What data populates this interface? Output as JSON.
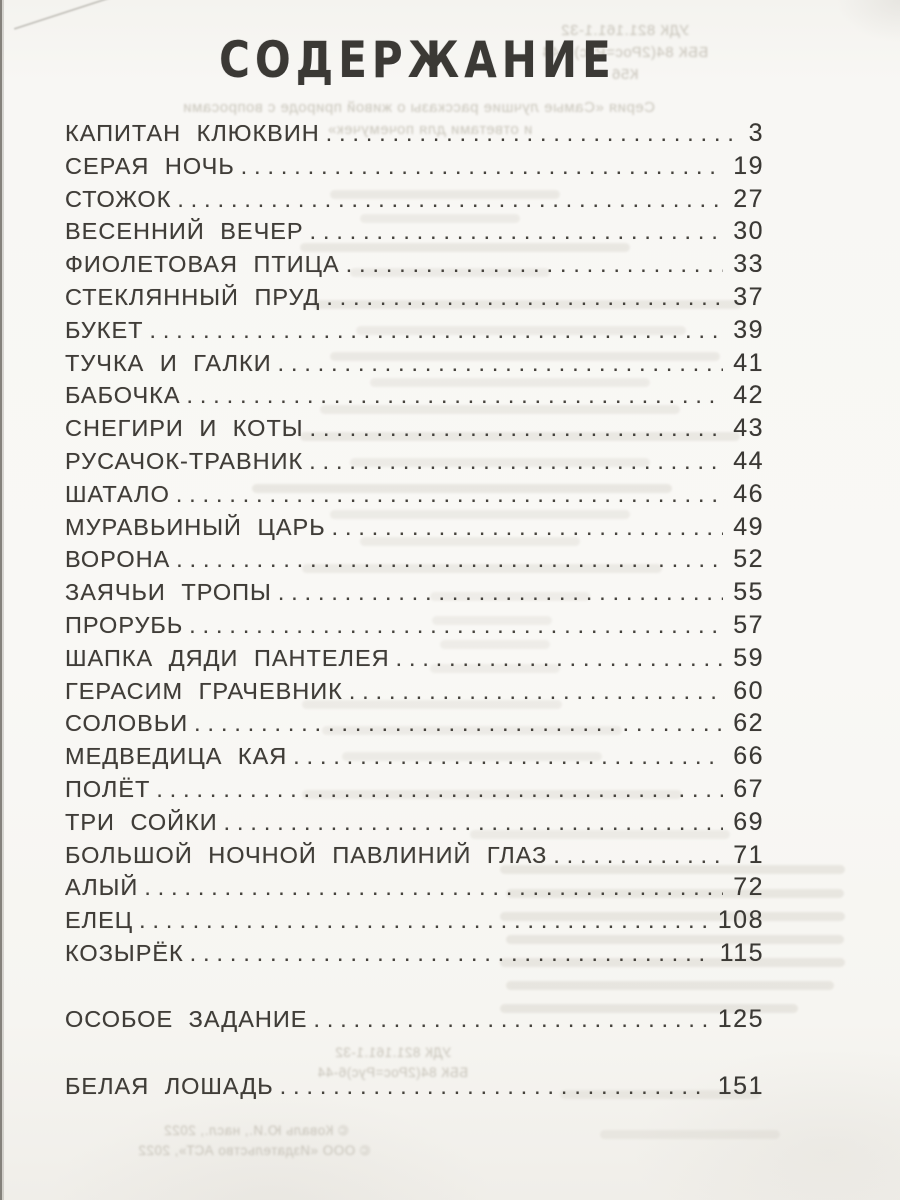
{
  "page_title": "СОДЕРЖАНИЕ",
  "toc": {
    "groups": [
      {
        "entries": [
          {
            "title": "КАПИТАН КЛЮКВИН",
            "page": "3"
          },
          {
            "title": "СЕРАЯ НОЧЬ",
            "page": "19"
          },
          {
            "title": "СТОЖОК",
            "page": "27"
          },
          {
            "title": "ВЕСЕННИЙ ВЕЧЕР",
            "page": "30"
          },
          {
            "title": "ФИОЛЕТОВАЯ ПТИЦА",
            "page": "33"
          },
          {
            "title": "СТЕКЛЯННЫЙ ПРУД",
            "page": "37"
          },
          {
            "title": "БУКЕТ",
            "page": "39"
          },
          {
            "title": "ТУЧКА И ГАЛКИ",
            "page": "41"
          },
          {
            "title": "БАБОЧКА",
            "page": "42"
          },
          {
            "title": "СНЕГИРИ И КОТЫ",
            "page": "43"
          },
          {
            "title": "РУСАЧОК-ТРАВНИК",
            "page": "44"
          },
          {
            "title": "ШАТАЛО",
            "page": "46"
          },
          {
            "title": "МУРАВЬИНЫЙ ЦАРЬ",
            "page": "49"
          },
          {
            "title": "ВОРОНА",
            "page": "52"
          },
          {
            "title": "ЗАЯЧЬИ ТРОПЫ",
            "page": "55"
          },
          {
            "title": "ПРОРУБЬ",
            "page": "57"
          },
          {
            "title": "ШАПКА ДЯДИ ПАНТЕЛЕЯ",
            "page": "59"
          },
          {
            "title": "ГЕРАСИМ ГРАЧЕВНИК",
            "page": "60"
          },
          {
            "title": "СОЛОВЬИ",
            "page": "62"
          },
          {
            "title": "МЕДВЕДИЦА КАЯ",
            "page": "66"
          },
          {
            "title": "ПОЛЁТ",
            "page": "67"
          },
          {
            "title": "ТРИ СОЙКИ",
            "page": "69"
          },
          {
            "title": "БОЛЬШОЙ НОЧНОЙ ПАВЛИНИЙ ГЛАЗ",
            "page": "71"
          },
          {
            "title": "АЛЫЙ",
            "page": "72"
          },
          {
            "title": "ЕЛЕЦ",
            "page": "108"
          },
          {
            "title": "КОЗЫРЁК",
            "page": "115"
          }
        ]
      },
      {
        "entries": [
          {
            "title": "ОСОБОЕ ЗАДАНИЕ",
            "page": "125"
          }
        ]
      },
      {
        "entries": [
          {
            "title": "БЕЛАЯ ЛОШАДЬ",
            "page": "151"
          }
        ]
      }
    ]
  },
  "bleedthrough": {
    "top_codes": [
      "УДК 821.161.1-32",
      "ББК 84(2Рос=Рус)6-44",
      "К56"
    ],
    "series_lines": [
      "Серия «Самые лучшие рассказы о живой природе с вопросами",
      "и ответами для почемучек»"
    ],
    "bottom_codes": [
      "УДК 821.161.1-32",
      "ББК 84(2Рос=Рус)6-44"
    ],
    "copyright_lines": [
      "© Коваль Ю.И., насл., 2022",
      "© ООО «Издательство АСТ», 2022"
    ]
  },
  "colors": {
    "ink": "#403d38",
    "paper": "#f8f7f4",
    "bleed_text": "#c7c3b9"
  }
}
